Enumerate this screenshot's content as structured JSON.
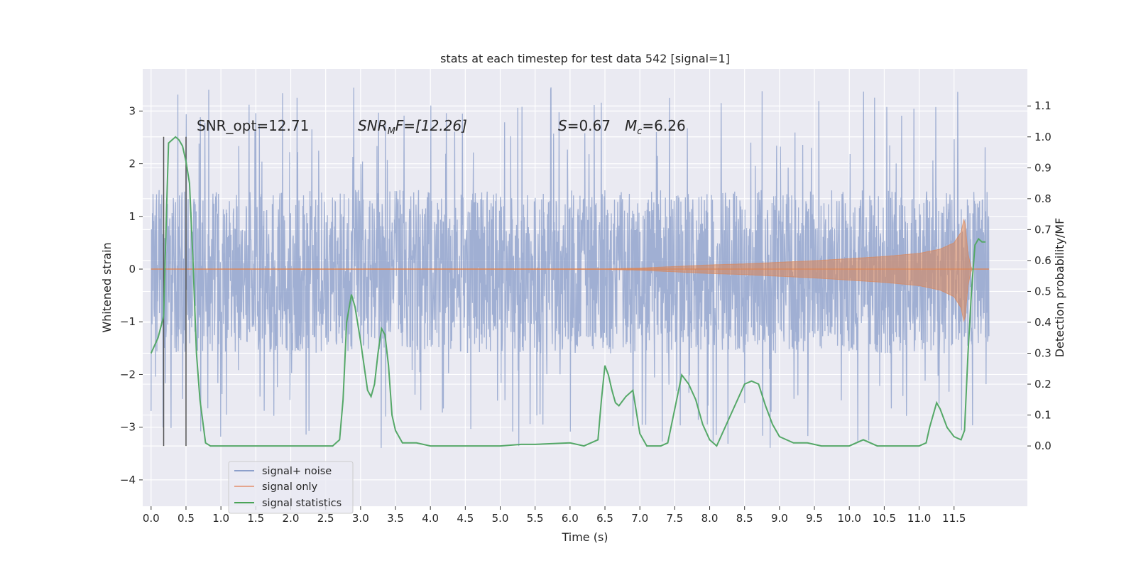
{
  "chart_data": {
    "type": "line",
    "title": "stats at each timestep for test data 542 [signal=1]",
    "xlabel": "Time (s)",
    "ylabel_left": "Whitened strain",
    "ylabel_right": "Detection probability/MF",
    "xlim": [
      -0.12,
      12.55
    ],
    "ylim_left": [
      -4.5,
      3.8
    ],
    "ylim_right": [
      -0.195,
      1.22
    ],
    "x_ticks": [
      0.0,
      0.5,
      1.0,
      1.5,
      2.0,
      2.5,
      3.0,
      3.5,
      4.0,
      4.5,
      5.0,
      5.5,
      6.0,
      6.5,
      7.0,
      7.5,
      8.0,
      8.5,
      9.0,
      9.5,
      10.0,
      10.5,
      11.0,
      11.5
    ],
    "x_tick_labels": [
      "0.0",
      "0.5",
      "1.0",
      "1.5",
      "2.0",
      "2.5",
      "3.0",
      "3.5",
      "4.0",
      "4.5",
      "5.0",
      "5.5",
      "6.0",
      "6.5",
      "7.0",
      "7.5",
      "8.0",
      "8.5",
      "9.0",
      "9.5",
      "10.0",
      "10.5",
      "11.0",
      "11.5"
    ],
    "y_ticks_left": [
      -4,
      -3,
      -2,
      -1,
      0,
      1,
      2,
      3
    ],
    "y_tick_labels_left": [
      "−4",
      "−3",
      "−2",
      "−1",
      "0",
      "1",
      "2",
      "3"
    ],
    "y_ticks_right": [
      0.0,
      0.1,
      0.2,
      0.3,
      0.4,
      0.5,
      0.6,
      0.7,
      0.8,
      0.9,
      1.0,
      1.1
    ],
    "y_tick_labels_right": [
      "0.0",
      "0.1",
      "0.2",
      "0.3",
      "0.4",
      "0.5",
      "0.6",
      "0.7",
      "0.8",
      "0.9",
      "1.0",
      "1.1"
    ],
    "grid": true,
    "annotations": {
      "snr_opt": "SNR_opt=12.71",
      "snr_mf_label": "SNR",
      "snr_mf_sub": "M",
      "snr_mf_rest": "F=[12.26]",
      "s_label": "S",
      "s_rest": "=0.67",
      "mc_label": "M",
      "mc_sub": "c",
      "mc_rest": "=6.26"
    },
    "markers_x": [
      0.18,
      0.5
    ],
    "noise_envelope": {
      "x_range": [
        0.0,
        12.0
      ],
      "typical_band": [
        -1.6,
        1.5
      ],
      "peak_range": [
        -3.4,
        3.45
      ]
    },
    "signal_only": {
      "x": [
        0.0,
        6.5,
        7.0,
        7.5,
        8.0,
        8.5,
        9.0,
        9.5,
        10.0,
        10.5,
        11.0,
        11.3,
        11.5,
        11.6,
        11.65,
        11.7,
        11.75,
        12.0
      ],
      "amplitude": [
        0.0,
        0.005,
        0.02,
        0.05,
        0.08,
        0.1,
        0.13,
        0.16,
        0.2,
        0.24,
        0.3,
        0.38,
        0.5,
        0.7,
        1.0,
        0.3,
        0.0,
        0.0
      ]
    },
    "series": [
      {
        "name": "signal statistics",
        "axis": "right",
        "x": [
          0.0,
          0.1,
          0.18,
          0.22,
          0.25,
          0.3,
          0.35,
          0.4,
          0.45,
          0.5,
          0.55,
          0.6,
          0.65,
          0.7,
          0.78,
          0.85,
          1.0,
          1.5,
          2.0,
          2.5,
          2.6,
          2.7,
          2.75,
          2.8,
          2.87,
          2.92,
          3.0,
          3.1,
          3.15,
          3.2,
          3.25,
          3.3,
          3.35,
          3.4,
          3.45,
          3.5,
          3.6,
          3.8,
          4.0,
          4.5,
          5.0,
          5.3,
          5.5,
          6.0,
          6.2,
          6.4,
          6.45,
          6.5,
          6.55,
          6.6,
          6.65,
          6.7,
          6.8,
          6.9,
          7.0,
          7.1,
          7.2,
          7.3,
          7.4,
          7.5,
          7.6,
          7.7,
          7.8,
          7.9,
          8.0,
          8.1,
          8.3,
          8.5,
          8.6,
          8.7,
          8.8,
          8.9,
          9.0,
          9.2,
          9.4,
          9.6,
          9.8,
          10.0,
          10.2,
          10.4,
          10.6,
          10.8,
          11.0,
          11.1,
          11.15,
          11.25,
          11.3,
          11.4,
          11.5,
          11.6,
          11.65,
          11.7,
          11.75,
          11.8,
          11.85,
          11.9,
          11.95
        ],
        "values": [
          0.3,
          0.35,
          0.42,
          0.75,
          0.98,
          0.99,
          1.0,
          0.99,
          0.97,
          0.92,
          0.85,
          0.6,
          0.3,
          0.15,
          0.01,
          0.0,
          0.0,
          0.0,
          0.0,
          0.0,
          0.0,
          0.02,
          0.15,
          0.4,
          0.49,
          0.45,
          0.34,
          0.18,
          0.16,
          0.2,
          0.3,
          0.38,
          0.36,
          0.26,
          0.1,
          0.05,
          0.01,
          0.01,
          0.0,
          0.0,
          0.0,
          0.005,
          0.005,
          0.01,
          0.0,
          0.02,
          0.15,
          0.26,
          0.23,
          0.18,
          0.14,
          0.13,
          0.16,
          0.18,
          0.04,
          0.0,
          0.0,
          0.0,
          0.01,
          0.12,
          0.23,
          0.2,
          0.15,
          0.07,
          0.02,
          0.0,
          0.1,
          0.2,
          0.21,
          0.2,
          0.13,
          0.07,
          0.03,
          0.01,
          0.01,
          0.0,
          0.0,
          0.0,
          0.02,
          0.0,
          0.0,
          0.0,
          0.0,
          0.01,
          0.06,
          0.14,
          0.12,
          0.06,
          0.03,
          0.02,
          0.05,
          0.3,
          0.5,
          0.65,
          0.67,
          0.66,
          0.66
        ]
      }
    ],
    "legend": {
      "placement": "lower-left",
      "entries": [
        {
          "name": "signal+ noise",
          "color": "#8da0cb"
        },
        {
          "name": "signal only",
          "color": "#e5a58e"
        },
        {
          "name": "signal statistics",
          "color": "#4aa357"
        }
      ]
    },
    "colors": {
      "background": "#eaeaf2",
      "grid": "#ffffff",
      "noise": "#8da0cb",
      "signal_only": "#dd8452",
      "statistics": "#55a868",
      "marker": "#555555"
    }
  }
}
